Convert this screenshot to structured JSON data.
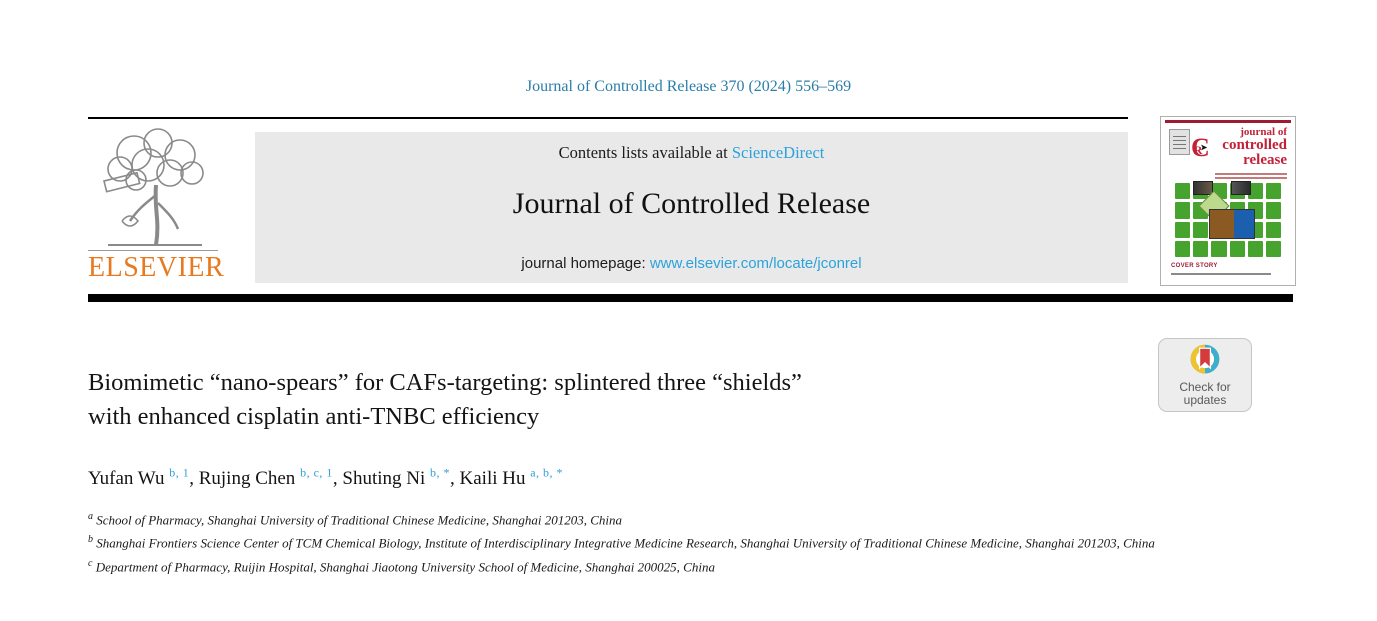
{
  "page": {
    "citation": "Journal of Controlled Release 370 (2024) 556–569"
  },
  "header": {
    "publisher_wordmark": "ELSEVIER",
    "contents_prefix": "Contents lists available at ",
    "contents_link": "ScienceDirect",
    "journal_title": "Journal of Controlled Release",
    "homepage_prefix": "journal homepage: ",
    "homepage_link": "www.elsevier.com/locate/jconrel"
  },
  "cover": {
    "title_lines": [
      "journal of",
      "controlled",
      "release"
    ],
    "logo_c": "C",
    "logo_r": "R",
    "logo_arrow": "➤",
    "footer": "COVER STORY"
  },
  "badge": {
    "line1": "Check for",
    "line2": "updates"
  },
  "article": {
    "title_lines": [
      "Biomimetic “nano-spears” for CAFs-targeting: splintered three “shields”",
      "with enhanced cisplatin anti-TNBC efficiency"
    ],
    "authors": [
      {
        "name": "Yufan Wu",
        "sup": "b, 1"
      },
      {
        "name": "Rujing Chen",
        "sup": "b, c, 1"
      },
      {
        "name": "Shuting Ni",
        "sup": "b, *"
      },
      {
        "name": "Kaili Hu",
        "sup": "a, b, *"
      }
    ],
    "affiliations": [
      {
        "label": "a",
        "text": "School of Pharmacy, Shanghai University of Traditional Chinese Medicine, Shanghai 201203, China"
      },
      {
        "label": "b",
        "text": "Shanghai Frontiers Science Center of TCM Chemical Biology, Institute of Interdisciplinary Integrative Medicine Research, Shanghai University of Traditional Chinese Medicine, Shanghai 201203, China"
      },
      {
        "label": "c",
        "text": "Department of Pharmacy, Ruijin Hospital, Shanghai Jiaotong University School of Medicine, Shanghai 200025, China"
      }
    ]
  },
  "colors": {
    "citation_teal": "#2b7ea9",
    "link_blue": "#2ba2dc",
    "superscript_blue": "#2e9fdb",
    "elsevier_orange": "#e8791e",
    "header_gray": "#e9e9e9",
    "cover_crimson": "#c22237",
    "cover_green": "#46a32e",
    "crossmark_yellow": "#efc22e",
    "crossmark_teal": "#3fAecb",
    "crossmark_red": "#d53a3c"
  }
}
